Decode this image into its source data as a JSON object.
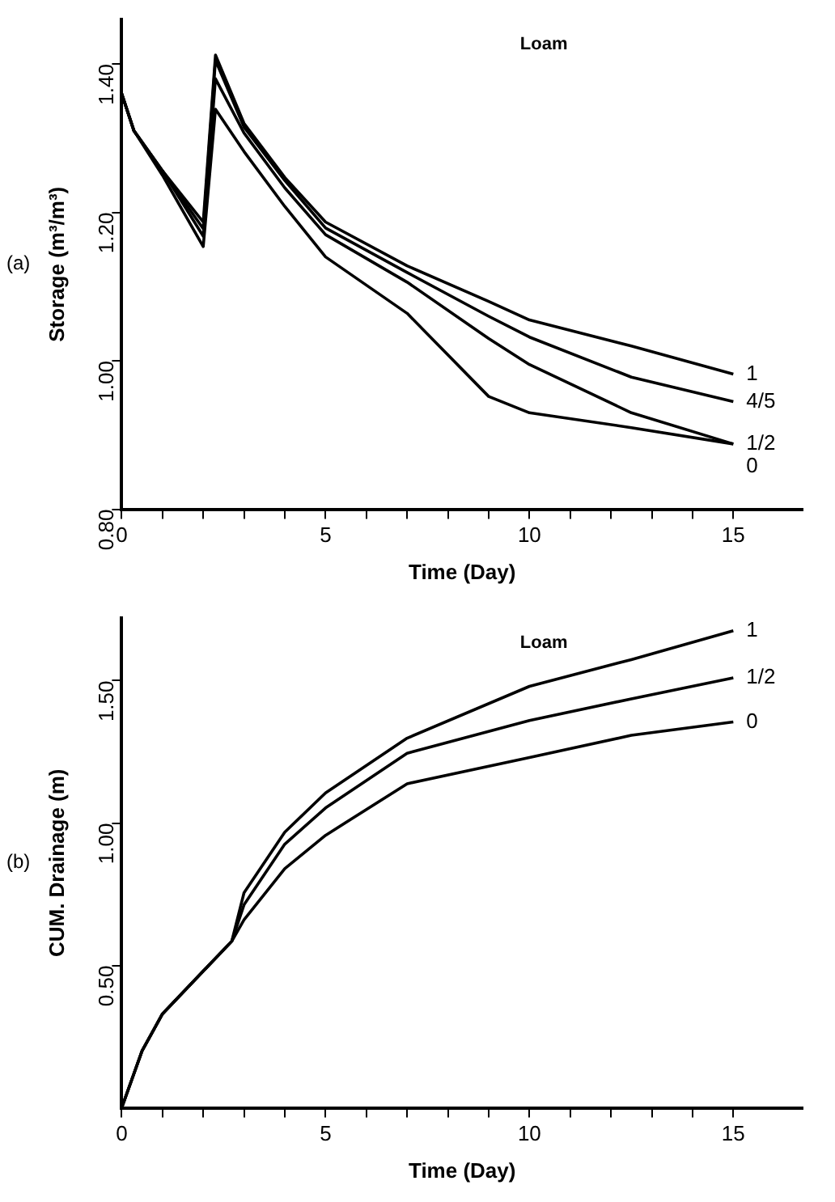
{
  "chart_data": [
    {
      "type": "line",
      "title": "Loam",
      "xlabel": "Time (Day)",
      "ylabel": "Storage (m³/m³)",
      "annotations": [
        "(a)"
      ],
      "xlim": [
        0,
        16.7
      ],
      "ylim": [
        0.8,
        1.46
      ],
      "xticks": [
        0,
        {
          "value": 1,
          "label": null
        },
        {
          "value": 2,
          "label": null
        },
        {
          "value": 3,
          "label": null
        },
        {
          "value": 4,
          "label": null
        },
        5,
        {
          "value": 6,
          "label": null
        },
        {
          "value": 7,
          "label": null
        },
        {
          "value": 8,
          "label": null
        },
        {
          "value": 9,
          "label": null
        },
        10,
        {
          "value": 11,
          "label": null
        },
        {
          "value": 12,
          "label": null
        },
        {
          "value": 13,
          "label": null
        },
        {
          "value": 14,
          "label": null
        },
        15
      ],
      "yticks": [
        {
          "value": 0.8,
          "label": "0.80"
        },
        {
          "value": 1,
          "label": "1.00"
        },
        {
          "value": 1.2,
          "label": "1.20"
        },
        {
          "value": 1.4,
          "label": "1.40"
        }
      ],
      "grid": false,
      "legend": false,
      "marker": "none",
      "line_style": "solid",
      "x": [
        0,
        0.3,
        1,
        2,
        2.3,
        3,
        4,
        5,
        7,
        9,
        10,
        12.5,
        15
      ],
      "series": [
        {
          "name": "1",
          "color": "#000000",
          "values": [
            1.36,
            1.31,
            1.256,
            1.187,
            1.412,
            1.32,
            1.247,
            1.187,
            1.128,
            1.08,
            1.055,
            1.02,
            0.982
          ]
        },
        {
          "name": "4/5",
          "color": "#000000",
          "values": [
            1.36,
            1.31,
            1.256,
            1.178,
            1.405,
            1.315,
            1.243,
            1.179,
            1.119,
            1.06,
            1.032,
            0.978,
            0.945
          ]
        },
        {
          "name": "1/2",
          "color": "#000000",
          "values": [
            1.36,
            1.31,
            1.256,
            1.168,
            1.38,
            1.307,
            1.233,
            1.17,
            1.106,
            1.03,
            0.995,
            0.93,
            0.888
          ]
        },
        {
          "name": "0",
          "color": "#000000",
          "values": [
            1.36,
            1.31,
            1.25,
            1.154,
            1.339,
            1.282,
            1.208,
            1.14,
            1.064,
            0.952,
            0.93,
            0.91,
            0.888
          ]
        }
      ]
    },
    {
      "type": "line",
      "title": "Loam",
      "xlabel": "Time (Day)",
      "ylabel": "CUM. Drainage (m)",
      "annotations": [
        "(b)"
      ],
      "xlim": [
        0,
        16.7
      ],
      "ylim": [
        0,
        1.72
      ],
      "xticks": [
        0,
        {
          "value": 1,
          "label": null
        },
        {
          "value": 2,
          "label": null
        },
        {
          "value": 3,
          "label": null
        },
        {
          "value": 4,
          "label": null
        },
        5,
        {
          "value": 6,
          "label": null
        },
        {
          "value": 7,
          "label": null
        },
        {
          "value": 8,
          "label": null
        },
        {
          "value": 9,
          "label": null
        },
        10,
        {
          "value": 11,
          "label": null
        },
        {
          "value": 12,
          "label": null
        },
        {
          "value": 13,
          "label": null
        },
        {
          "value": 14,
          "label": null
        },
        15
      ],
      "yticks": [
        {
          "value": 0.5,
          "label": "0.50"
        },
        {
          "value": 1,
          "label": "1.00"
        },
        {
          "value": 1.5,
          "label": "1.50"
        }
      ],
      "grid": false,
      "legend": false,
      "marker": "none",
      "line_style": "solid",
      "x": [
        0,
        0.5,
        1,
        2,
        2.7,
        3,
        4,
        5,
        7,
        10,
        12.5,
        15
      ],
      "series": [
        {
          "name": "1",
          "color": "#000000",
          "values": [
            0,
            0.2,
            0.33,
            0.48,
            0.585,
            0.755,
            0.968,
            1.106,
            1.298,
            1.48,
            1.574,
            1.675
          ]
        },
        {
          "name": "1/2",
          "color": "#000000",
          "values": [
            0,
            0.2,
            0.33,
            0.48,
            0.585,
            0.713,
            0.926,
            1.053,
            1.245,
            1.36,
            1.436,
            1.51
          ]
        },
        {
          "name": "0",
          "color": "#000000",
          "values": [
            0,
            0.2,
            0.33,
            0.48,
            0.585,
            0.66,
            0.84,
            0.957,
            1.138,
            1.23,
            1.308,
            1.355
          ]
        }
      ]
    }
  ]
}
